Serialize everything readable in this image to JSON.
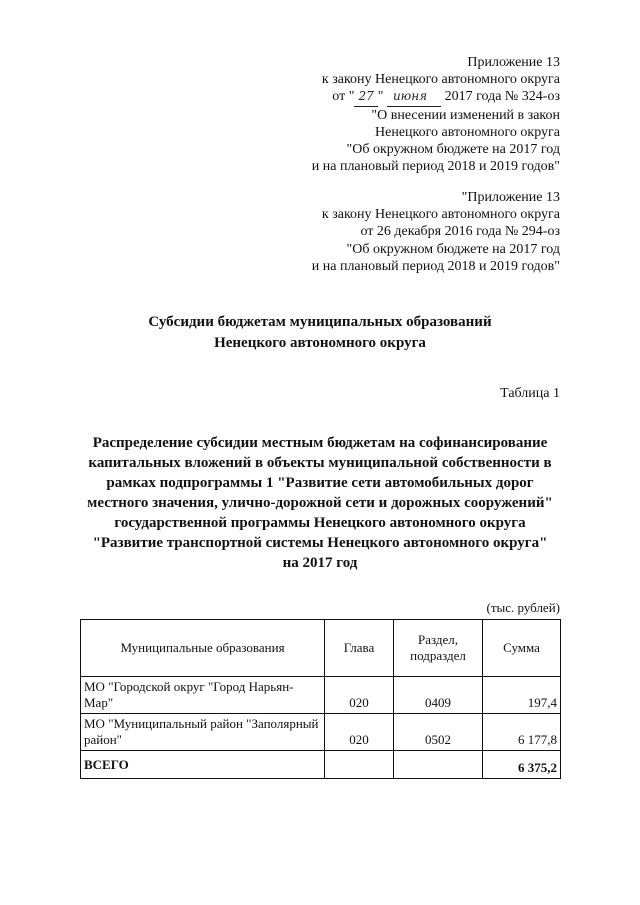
{
  "appendix_new": {
    "lines": [
      "Приложение 13",
      "к закону Ненецкого автономного округа"
    ],
    "date_prefix": "от \"",
    "day": "27",
    "mid": "\" ",
    "month": "июня",
    "date_suffix": " 2017 года № 324-оз",
    "rest": [
      "\"О внесении изменений в закон",
      "Ненецкого автономного округа",
      "\"Об окружном бюджете на 2017 год",
      "и на плановый период 2018 и 2019 годов\""
    ]
  },
  "appendix_old": {
    "lines": [
      "\"Приложение 13",
      "к закону Ненецкого автономного округа",
      "от 26 декабря 2016 года № 294-оз",
      "\"Об окружном бюджете на 2017 год",
      "и на плановый период 2018 и 2019 годов\""
    ]
  },
  "title": [
    "Субсидии бюджетам муниципальных образований",
    "Ненецкого автономного округа"
  ],
  "table_number": "Таблица 1",
  "heading": [
    "Распределение субсидии местным бюджетам на софинансирование",
    "капитальных вложений в объекты муниципальной собственности в",
    "рамках подпрограммы 1 \"Развитие сети автомобильных дорог",
    "местного значения, улично-дорожной сети и дорожных сооружений\"",
    "государственной программы Ненецкого автономного округа",
    "\"Развитие транспортной системы Ненецкого автономного округа\"",
    "на 2017 год"
  ],
  "unit": "(тыс. рублей)",
  "table": {
    "headers": [
      "Муниципальные образования",
      "Глава",
      "Раздел, подраздел",
      "Сумма"
    ],
    "rows": [
      {
        "name": "МО \"Городской округ \"Город Нарьян-Мар\"",
        "chapter": "020",
        "section": "0409",
        "sum": "197,4"
      },
      {
        "name": "МО \"Муниципальный район \"Заполярный район\"",
        "chapter": "020",
        "section": "0502",
        "sum": "6 177,8"
      }
    ],
    "total": {
      "label": "ВСЕГО",
      "sum": "6 375,2"
    }
  }
}
